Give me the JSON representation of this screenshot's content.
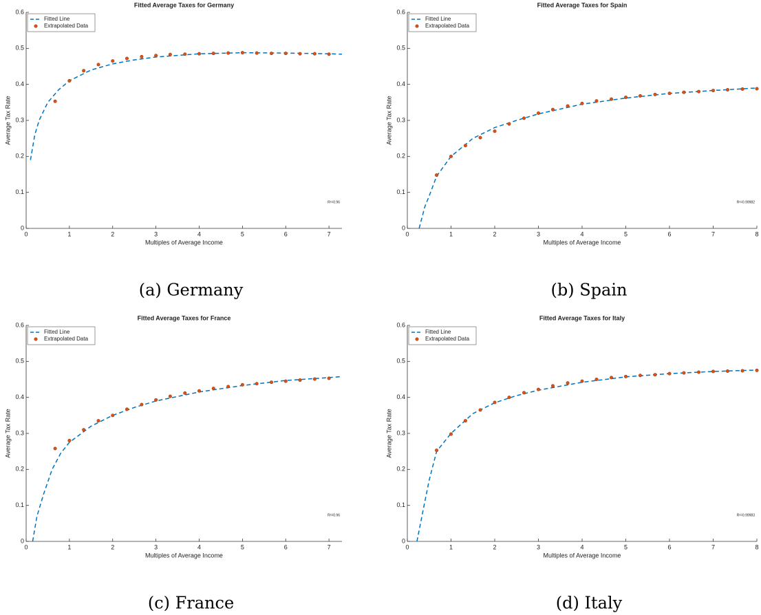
{
  "chart_data": [
    {
      "type": "scatter",
      "title": "Fitted Average Taxes for Germany",
      "caption": "(a) Germany",
      "x_label": "Multiples of Average Income",
      "y_label": "Average Tax Rate",
      "annotation": "R²=0.96",
      "xlim": [
        0,
        7.3
      ],
      "xticks": [
        0,
        1,
        2,
        3,
        4,
        5,
        6,
        7
      ],
      "ylim": [
        0,
        0.6
      ],
      "yticks": [
        0,
        0.1,
        0.2,
        0.3,
        0.4,
        0.5,
        0.6
      ],
      "legend": "upper-left",
      "series": [
        {
          "name": "Fitted Line",
          "kind": "line",
          "color": "#0072bd",
          "x": [
            0.1,
            0.2,
            0.3,
            0.5,
            0.75,
            1,
            1.5,
            2,
            2.5,
            3,
            4,
            5,
            6,
            7,
            7.3
          ],
          "values": [
            0.19,
            0.26,
            0.3,
            0.35,
            0.385,
            0.41,
            0.44,
            0.457,
            0.468,
            0.476,
            0.485,
            0.488,
            0.487,
            0.485,
            0.484
          ]
        },
        {
          "name": "Extrapolated Data",
          "kind": "points",
          "color": "#d95319",
          "x": [
            0.67,
            1,
            1.33,
            1.67,
            2,
            2.33,
            2.67,
            3,
            3.33,
            3.67,
            4,
            4.33,
            4.67,
            5,
            5.33,
            5.67,
            6,
            6.33,
            6.67,
            7
          ],
          "values": [
            0.353,
            0.41,
            0.438,
            0.455,
            0.465,
            0.472,
            0.477,
            0.48,
            0.483,
            0.484,
            0.485,
            0.486,
            0.487,
            0.488,
            0.487,
            0.486,
            0.486,
            0.485,
            0.485,
            0.484
          ]
        }
      ]
    },
    {
      "type": "scatter",
      "title": "Fitted Average Taxes for Spain",
      "caption": "(b) Spain",
      "x_label": "Multiples of Average Income",
      "y_label": "Average Tax Rate",
      "annotation": "R²=0.99982",
      "xlim": [
        0,
        8
      ],
      "xticks": [
        0,
        1,
        2,
        3,
        4,
        5,
        6,
        7,
        8
      ],
      "ylim": [
        0,
        0.6
      ],
      "yticks": [
        0,
        0.1,
        0.2,
        0.3,
        0.4,
        0.5,
        0.6
      ],
      "legend": "upper-left",
      "series": [
        {
          "name": "Fitted Line",
          "kind": "line",
          "color": "#0072bd",
          "x": [
            0.27,
            0.4,
            0.5,
            0.67,
            1,
            1.5,
            2,
            2.5,
            3,
            4,
            5,
            6,
            7,
            8
          ],
          "values": [
            0,
            0.06,
            0.09,
            0.145,
            0.2,
            0.25,
            0.28,
            0.3,
            0.318,
            0.345,
            0.362,
            0.375,
            0.383,
            0.39
          ]
        },
        {
          "name": "Extrapolated Data",
          "kind": "points",
          "color": "#d95319",
          "x": [
            0.67,
            1,
            1.33,
            1.67,
            2,
            2.33,
            2.67,
            3,
            3.33,
            3.67,
            4,
            4.33,
            4.67,
            5,
            5.33,
            5.67,
            6,
            6.33,
            6.67,
            7,
            7.33,
            7.67,
            8
          ],
          "values": [
            0.148,
            0.2,
            0.23,
            0.252,
            0.27,
            0.29,
            0.306,
            0.32,
            0.33,
            0.34,
            0.347,
            0.354,
            0.359,
            0.364,
            0.368,
            0.372,
            0.375,
            0.378,
            0.38,
            0.383,
            0.385,
            0.387,
            0.388
          ]
        }
      ]
    },
    {
      "type": "scatter",
      "title": "Fitted Average Taxes for France",
      "caption": "(c) France",
      "x_label": "Multiples of Average Income",
      "y_label": "Average Tax Rate",
      "annotation": "R²=0.96",
      "xlim": [
        0,
        7.3
      ],
      "xticks": [
        0,
        1,
        2,
        3,
        4,
        5,
        6,
        7
      ],
      "ylim": [
        0,
        0.6
      ],
      "yticks": [
        0,
        0.1,
        0.2,
        0.3,
        0.4,
        0.5,
        0.6
      ],
      "legend": "upper-left",
      "series": [
        {
          "name": "Fitted Line",
          "kind": "line",
          "color": "#0072bd",
          "x": [
            0.15,
            0.25,
            0.4,
            0.6,
            0.8,
            1,
            1.5,
            2,
            2.5,
            3,
            4,
            5,
            6,
            7,
            7.3
          ],
          "values": [
            0,
            0.07,
            0.13,
            0.2,
            0.245,
            0.275,
            0.32,
            0.35,
            0.372,
            0.39,
            0.415,
            0.433,
            0.447,
            0.455,
            0.458
          ]
        },
        {
          "name": "Extrapolated Data",
          "kind": "points",
          "color": "#d95319",
          "x": [
            0.67,
            1,
            1.33,
            1.67,
            2,
            2.33,
            2.67,
            3,
            3.33,
            3.67,
            4,
            4.33,
            4.67,
            5,
            5.33,
            5.67,
            6,
            6.33,
            6.67,
            7
          ],
          "values": [
            0.258,
            0.28,
            0.31,
            0.335,
            0.35,
            0.367,
            0.38,
            0.393,
            0.403,
            0.412,
            0.418,
            0.425,
            0.43,
            0.435,
            0.438,
            0.442,
            0.445,
            0.448,
            0.451,
            0.453
          ]
        }
      ]
    },
    {
      "type": "scatter",
      "title": "Fitted Average Taxes for Italy",
      "caption": "(d) Italy",
      "x_label": "Multiples of Average Income",
      "y_label": "Average Tax Rate",
      "annotation": "R²=0.99983",
      "xlim": [
        0,
        8
      ],
      "xticks": [
        0,
        1,
        2,
        3,
        4,
        5,
        6,
        7,
        8
      ],
      "ylim": [
        0,
        0.6
      ],
      "yticks": [
        0,
        0.1,
        0.2,
        0.3,
        0.4,
        0.5,
        0.6
      ],
      "legend": "upper-left",
      "series": [
        {
          "name": "Fitted Line",
          "kind": "line",
          "color": "#0072bd",
          "x": [
            0.22,
            0.35,
            0.5,
            0.67,
            1,
            1.5,
            2,
            2.5,
            3,
            4,
            5,
            6,
            7,
            8
          ],
          "values": [
            0,
            0.08,
            0.17,
            0.25,
            0.3,
            0.355,
            0.385,
            0.405,
            0.42,
            0.442,
            0.457,
            0.466,
            0.472,
            0.476
          ]
        },
        {
          "name": "Extrapolated Data",
          "kind": "points",
          "color": "#d95319",
          "x": [
            0.67,
            1,
            1.33,
            1.67,
            2,
            2.33,
            2.67,
            3,
            3.33,
            3.67,
            4,
            4.33,
            4.67,
            5,
            5.33,
            5.67,
            6,
            6.33,
            6.67,
            7,
            7.33,
            7.67,
            8
          ],
          "values": [
            0.253,
            0.298,
            0.335,
            0.365,
            0.386,
            0.4,
            0.413,
            0.422,
            0.432,
            0.44,
            0.445,
            0.45,
            0.455,
            0.458,
            0.461,
            0.463,
            0.466,
            0.468,
            0.47,
            0.472,
            0.473,
            0.474,
            0.475
          ]
        }
      ]
    }
  ]
}
